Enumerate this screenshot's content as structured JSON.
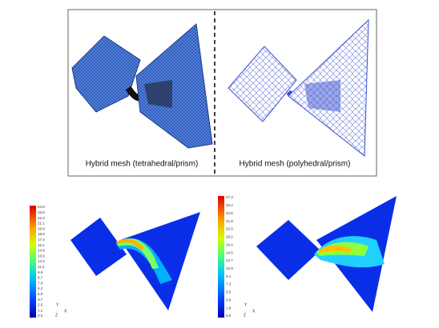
{
  "top_panel": {
    "captions": [
      "Hybrid mesh (tetrahedral/prism)",
      "Hybrid mesh (polyhedral/prism)"
    ]
  },
  "bottom_left": {
    "colorbar_labels": [
      "24.9",
      "23.5",
      "22.3",
      "21.1",
      "19.9",
      "18.6",
      "17.4",
      "16.1",
      "14.9",
      "13.6",
      "12.4",
      "11.2",
      "9.9",
      "8.7",
      "7.4",
      "6.2",
      "5.0",
      "3.7",
      "2.5",
      "1.2",
      "0.0"
    ],
    "axes": [
      "Y",
      "X",
      "Z"
    ]
  },
  "bottom_right": {
    "colorbar_labels": [
      "27.3",
      "25.4",
      "23.6",
      "21.8",
      "20.0",
      "18.2",
      "16.4",
      "14.5",
      "12.7",
      "10.9",
      "9.1",
      "7.3",
      "5.5",
      "3.6",
      "1.8",
      "0.0"
    ],
    "axes": [
      "Y",
      "X",
      "Z"
    ]
  }
}
